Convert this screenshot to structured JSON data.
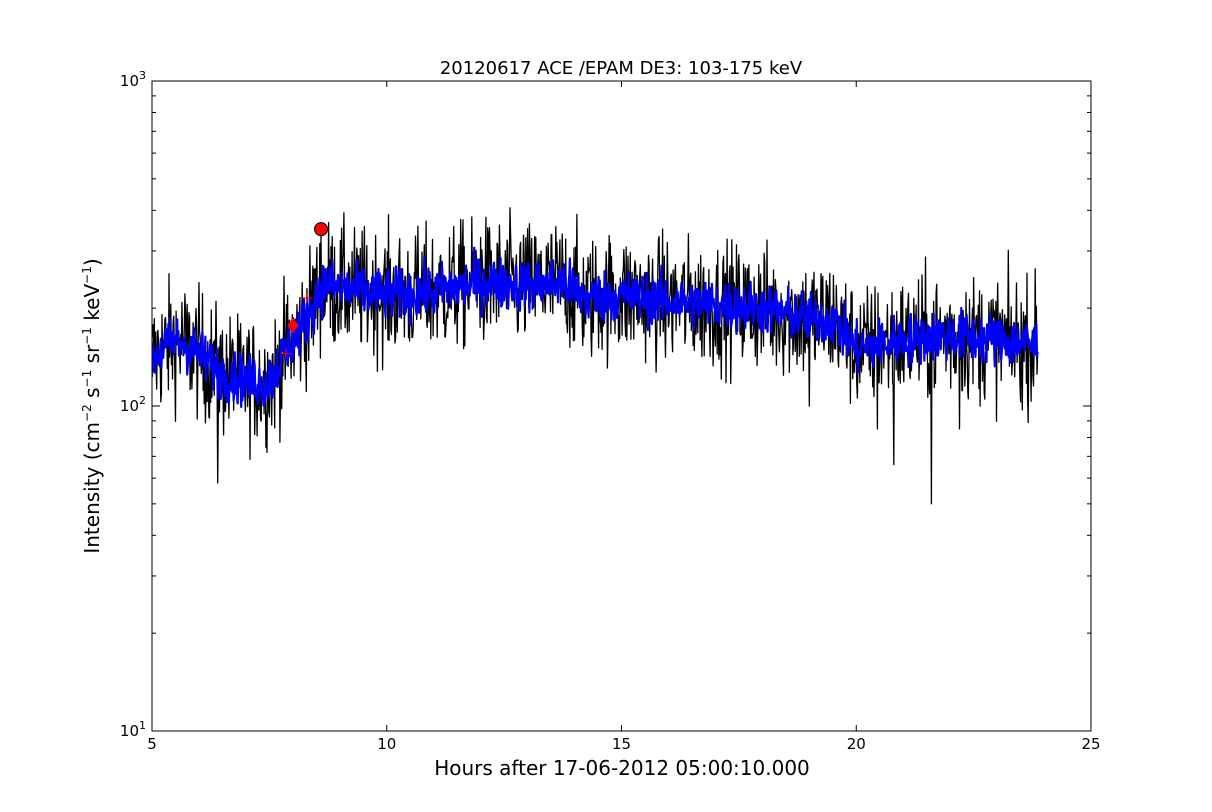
{
  "chart_data": {
    "type": "line",
    "title": "20120617 ACE /EPAM DE3: 103-175 keV",
    "xlabel": "Hours after 17-06-2012 05:00:10.000",
    "ylabel": {
      "prefix": "Intensity (cm",
      "cm_exp": "−2",
      "s": " s",
      "s_exp": "−1",
      "sr": " sr",
      "sr_exp": "−1",
      "kev": " keV",
      "kev_exp": "−1",
      "suffix": ")"
    },
    "xlim": [
      5,
      25
    ],
    "ylim": [
      10,
      1000
    ],
    "yscale": "log",
    "grid": false,
    "x_ticks": [
      "5",
      "10",
      "15",
      "20",
      "25"
    ],
    "y_ticks": [
      {
        "base": "10",
        "exp": "1"
      },
      {
        "base": "10",
        "exp": "2"
      },
      {
        "base": "10",
        "exp": "3"
      }
    ],
    "colors": {
      "raw": "#000000",
      "smoothed": "#0000ff",
      "marker": "#ff0000"
    },
    "series": [
      {
        "style": "raw",
        "profile": [
          [
            5.0,
            140
          ],
          [
            5.5,
            160
          ],
          [
            6.0,
            145
          ],
          [
            6.5,
            125
          ],
          [
            7.0,
            120
          ],
          [
            7.4,
            118
          ],
          [
            7.6,
            125
          ],
          [
            7.8,
            145
          ],
          [
            8.0,
            160
          ],
          [
            8.3,
            185
          ],
          [
            8.5,
            215
          ],
          [
            8.7,
            240
          ],
          [
            9.0,
            230
          ],
          [
            10.0,
            220
          ],
          [
            11.0,
            225
          ],
          [
            12.0,
            240
          ],
          [
            13.0,
            235
          ],
          [
            13.8,
            240
          ],
          [
            14.2,
            215
          ],
          [
            15.0,
            220
          ],
          [
            16.0,
            210
          ],
          [
            17.0,
            205
          ],
          [
            18.0,
            200
          ],
          [
            19.0,
            185
          ],
          [
            19.5,
            185
          ],
          [
            20.0,
            150
          ],
          [
            21.0,
            160
          ],
          [
            22.0,
            165
          ],
          [
            23.0,
            160
          ],
          [
            23.8,
            155
          ]
        ],
        "spikes": [
          [
            6.4,
            58
          ],
          [
            7.45,
            72
          ],
          [
            21.6,
            50
          ],
          [
            20.8,
            66
          ],
          [
            22.2,
            85
          ],
          [
            19.0,
            100
          ],
          [
            20.45,
            85
          ],
          [
            8.6,
            340
          ],
          [
            12.0,
            330
          ],
          [
            13.4,
            310
          ]
        ],
        "scatter": 0.22
      },
      {
        "style": "smoothed",
        "profile": [
          [
            5.0,
            140
          ],
          [
            5.5,
            160
          ],
          [
            6.0,
            145
          ],
          [
            6.5,
            125
          ],
          [
            7.0,
            120
          ],
          [
            7.4,
            118
          ],
          [
            7.6,
            125
          ],
          [
            7.8,
            145
          ],
          [
            8.0,
            160
          ],
          [
            8.3,
            185
          ],
          [
            8.5,
            215
          ],
          [
            8.7,
            240
          ],
          [
            9.0,
            230
          ],
          [
            10.0,
            220
          ],
          [
            11.0,
            225
          ],
          [
            12.0,
            240
          ],
          [
            13.0,
            235
          ],
          [
            13.8,
            240
          ],
          [
            14.2,
            215
          ],
          [
            15.0,
            220
          ],
          [
            16.0,
            210
          ],
          [
            17.0,
            205
          ],
          [
            18.0,
            200
          ],
          [
            19.0,
            185
          ],
          [
            19.5,
            185
          ],
          [
            20.0,
            150
          ],
          [
            21.0,
            160
          ],
          [
            22.0,
            165
          ],
          [
            23.0,
            160
          ],
          [
            23.8,
            155
          ]
        ],
        "scatter": 0.09
      }
    ],
    "markers": [
      {
        "x": 8.6,
        "y": 350,
        "shape": "circle"
      },
      {
        "x": 8.0,
        "y": 177,
        "shape": "diamond"
      },
      {
        "x": 7.85,
        "y": 145,
        "shape": "plus"
      },
      {
        "x": 8.3,
        "y": 215,
        "shape": "plus"
      }
    ]
  }
}
